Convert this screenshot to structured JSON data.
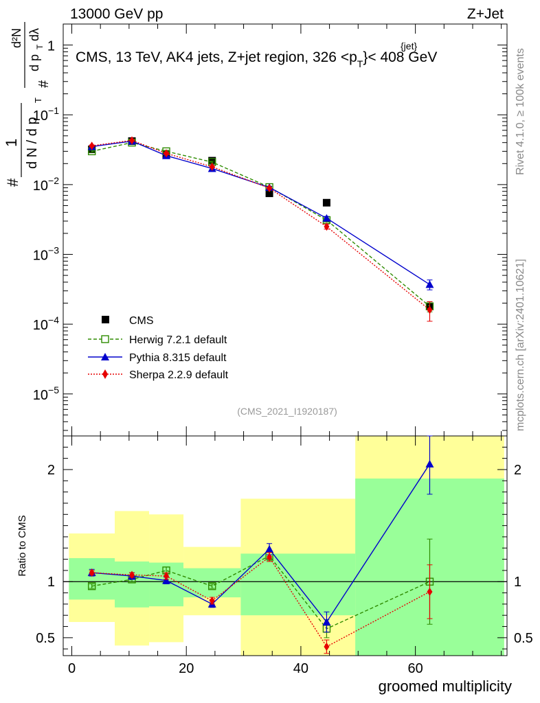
{
  "header": {
    "left": "13000 GeV pp",
    "right": "Z+Jet",
    "title": "CMS, 13 TeV, AK4 jets, Z+jet region, 326 <p",
    "title_sup": "{jet}",
    "title_sub": "T",
    "title_end": "}< 408 GeV"
  },
  "side_labels": {
    "rivet": "Rivet 4.1.0, ≥ 100k events",
    "mcplots": "mcplots.cern.ch [arXiv:2401.10621]"
  },
  "analysis_id": "(CMS_2021_I1920187)",
  "upper_ylabel": {
    "hash": "#",
    "one": "1",
    "dn": "d N / d p",
    "hash2": "#",
    "dpt": "d p",
    "t": "T",
    "d2n": "d²N",
    "dl": "dλ"
  },
  "lower_ylabel": "Ratio to CMS",
  "xlabel": "groomed multiplicity",
  "legend": [
    "CMS",
    "Herwig 7.2.1 default",
    "Pythia 8.315 default",
    "Sherpa 2.2.9 default"
  ],
  "colors": {
    "cms": "#000000",
    "herwig": "#2e8b00",
    "pythia": "#0000cc",
    "sherpa": "#e60000",
    "band_inner": "#99ff99",
    "band_outer": "#ffff99"
  },
  "chart_data": {
    "type": "scatter",
    "x_range": [
      -1.5,
      76
    ],
    "x_ticks": [
      0,
      20,
      40,
      60
    ],
    "upper": {
      "yscale": "log",
      "ylim": [
        2.5e-06,
        2
      ],
      "y_ticks": [
        {
          "value": 1,
          "base": "1",
          "exp": ""
        },
        {
          "value": 0.1,
          "base": "10",
          "exp": "−1"
        },
        {
          "value": 0.01,
          "base": "10",
          "exp": "−2"
        },
        {
          "value": 0.001,
          "base": "10",
          "exp": "−3"
        },
        {
          "value": 0.0001,
          "base": "10",
          "exp": "−4"
        },
        {
          "value": 1e-05,
          "base": "10",
          "exp": "−5"
        }
      ],
      "series": [
        {
          "name": "CMS",
          "x": [
            3.5,
            10.5,
            16.5,
            24.5,
            34.5,
            44.5,
            62.5
          ],
          "y": [
            0.032,
            0.042,
            0.027,
            0.022,
            0.0075,
            0.0055,
            0.00018
          ]
        },
        {
          "name": "Herwig 7.2.1 default",
          "x": [
            3.5,
            10.5,
            16.5,
            24.5,
            34.5,
            44.5,
            62.5
          ],
          "y": [
            0.03,
            0.04,
            0.03,
            0.021,
            0.0092,
            0.0031,
            0.00018
          ],
          "err": [
            0.001,
            0.001,
            0.001,
            0.0007,
            0.0003,
            0.0002,
            3e-05
          ]
        },
        {
          "name": "Pythia 8.315 default",
          "x": [
            3.5,
            10.5,
            16.5,
            24.5,
            34.5,
            44.5,
            62.5
          ],
          "y": [
            0.035,
            0.042,
            0.026,
            0.017,
            0.0091,
            0.0033,
            0.00037
          ],
          "err": [
            0.001,
            0.001,
            0.001,
            0.0006,
            0.0003,
            0.0002,
            6e-05
          ]
        },
        {
          "name": "Sherpa 2.2.9 default",
          "x": [
            3.5,
            10.5,
            16.5,
            24.5,
            34.5,
            44.5,
            62.5
          ],
          "y": [
            0.036,
            0.043,
            0.028,
            0.018,
            0.0089,
            0.0025,
            0.00016
          ],
          "err": [
            0.001,
            0.001,
            0.001,
            0.0006,
            0.0003,
            0.0002,
            5e-05
          ]
        }
      ]
    },
    "lower": {
      "yscale": "linear",
      "ylim": [
        0.34,
        2.3
      ],
      "y_ticks": [
        0.5,
        1,
        2
      ],
      "ylabel": "Ratio to CMS",
      "bands": [
        {
          "x0": -0.5,
          "x1": 7.5,
          "inner": [
            0.84,
            1.21
          ],
          "outer": [
            0.64,
            1.43
          ]
        },
        {
          "x0": 7.5,
          "x1": 13.5,
          "inner": [
            0.77,
            1.18
          ],
          "outer": [
            0.43,
            1.63
          ]
        },
        {
          "x0": 13.5,
          "x1": 19.5,
          "inner": [
            0.78,
            1.17
          ],
          "outer": [
            0.46,
            1.6
          ]
        },
        {
          "x0": 19.5,
          "x1": 29.5,
          "inner": [
            0.86,
            1.12
          ],
          "outer": [
            0.7,
            1.31
          ]
        },
        {
          "x0": 29.5,
          "x1": 49.5,
          "inner": [
            0.7,
            1.25
          ],
          "outer": [
            0.34,
            1.74
          ]
        },
        {
          "x0": 49.5,
          "x1": 75.5,
          "inner": [
            0.34,
            1.92
          ],
          "outer": [
            0.34,
            2.3
          ]
        }
      ],
      "series": [
        {
          "name": "Herwig 7.2.1 default",
          "x": [
            3.5,
            10.5,
            16.5,
            24.5,
            34.5,
            44.5,
            62.5
          ],
          "y": [
            0.96,
            1.02,
            1.1,
            0.96,
            1.23,
            0.58,
            1.0
          ],
          "err": [
            0.02,
            0.02,
            0.03,
            0.02,
            0.04,
            0.08,
            0.38
          ]
        },
        {
          "name": "Pythia 8.315 default",
          "x": [
            3.5,
            10.5,
            16.5,
            24.5,
            34.5,
            44.5,
            62.5
          ],
          "y": [
            1.08,
            1.05,
            1.01,
            0.8,
            1.29,
            0.64,
            2.05
          ],
          "err": [
            0.03,
            0.03,
            0.03,
            0.03,
            0.05,
            0.09,
            0.27
          ]
        },
        {
          "name": "Sherpa 2.2.9 default",
          "x": [
            3.5,
            10.5,
            16.5,
            24.5,
            34.5,
            44.5,
            62.5
          ],
          "y": [
            1.08,
            1.06,
            1.05,
            0.83,
            1.22,
            0.42,
            0.91
          ],
          "err": [
            0.02,
            0.02,
            0.03,
            0.03,
            0.04,
            0.06,
            0.24
          ]
        }
      ]
    }
  }
}
